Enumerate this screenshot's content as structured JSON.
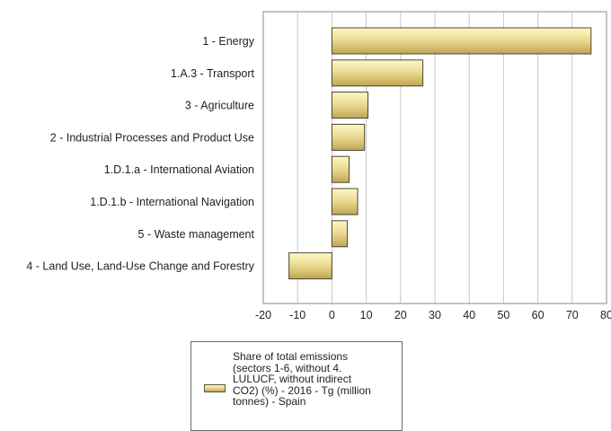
{
  "chart_data": {
    "type": "bar",
    "orientation": "horizontal",
    "categories": [
      "1 - Energy",
      "1.A.3 - Transport",
      "3 - Agriculture",
      "2 - Industrial Processes and Product Use",
      "1.D.1.a - International Aviation",
      "1.D.1.b - International Navigation",
      "5 - Waste management",
      "4 - Land Use, Land-Use Change and Forestry"
    ],
    "series": [
      {
        "name": "Share of total emissions\n(sectors 1-6, without 4.\nLULUCF, without indirect\nCO2) (%) - 2016 - Tg (million\ntonnes) - Spain",
        "values": [
          75.5,
          26.5,
          10.5,
          9.5,
          5.0,
          7.5,
          4.5,
          -12.5
        ]
      }
    ],
    "xlim": [
      -20,
      80
    ],
    "xticks": [
      "-20",
      "-10",
      "0",
      "10",
      "20",
      "30",
      "40",
      "50",
      "60",
      "70",
      "80"
    ],
    "grid": true,
    "legend_position": "bottom",
    "bar_color": "#e6d487"
  }
}
